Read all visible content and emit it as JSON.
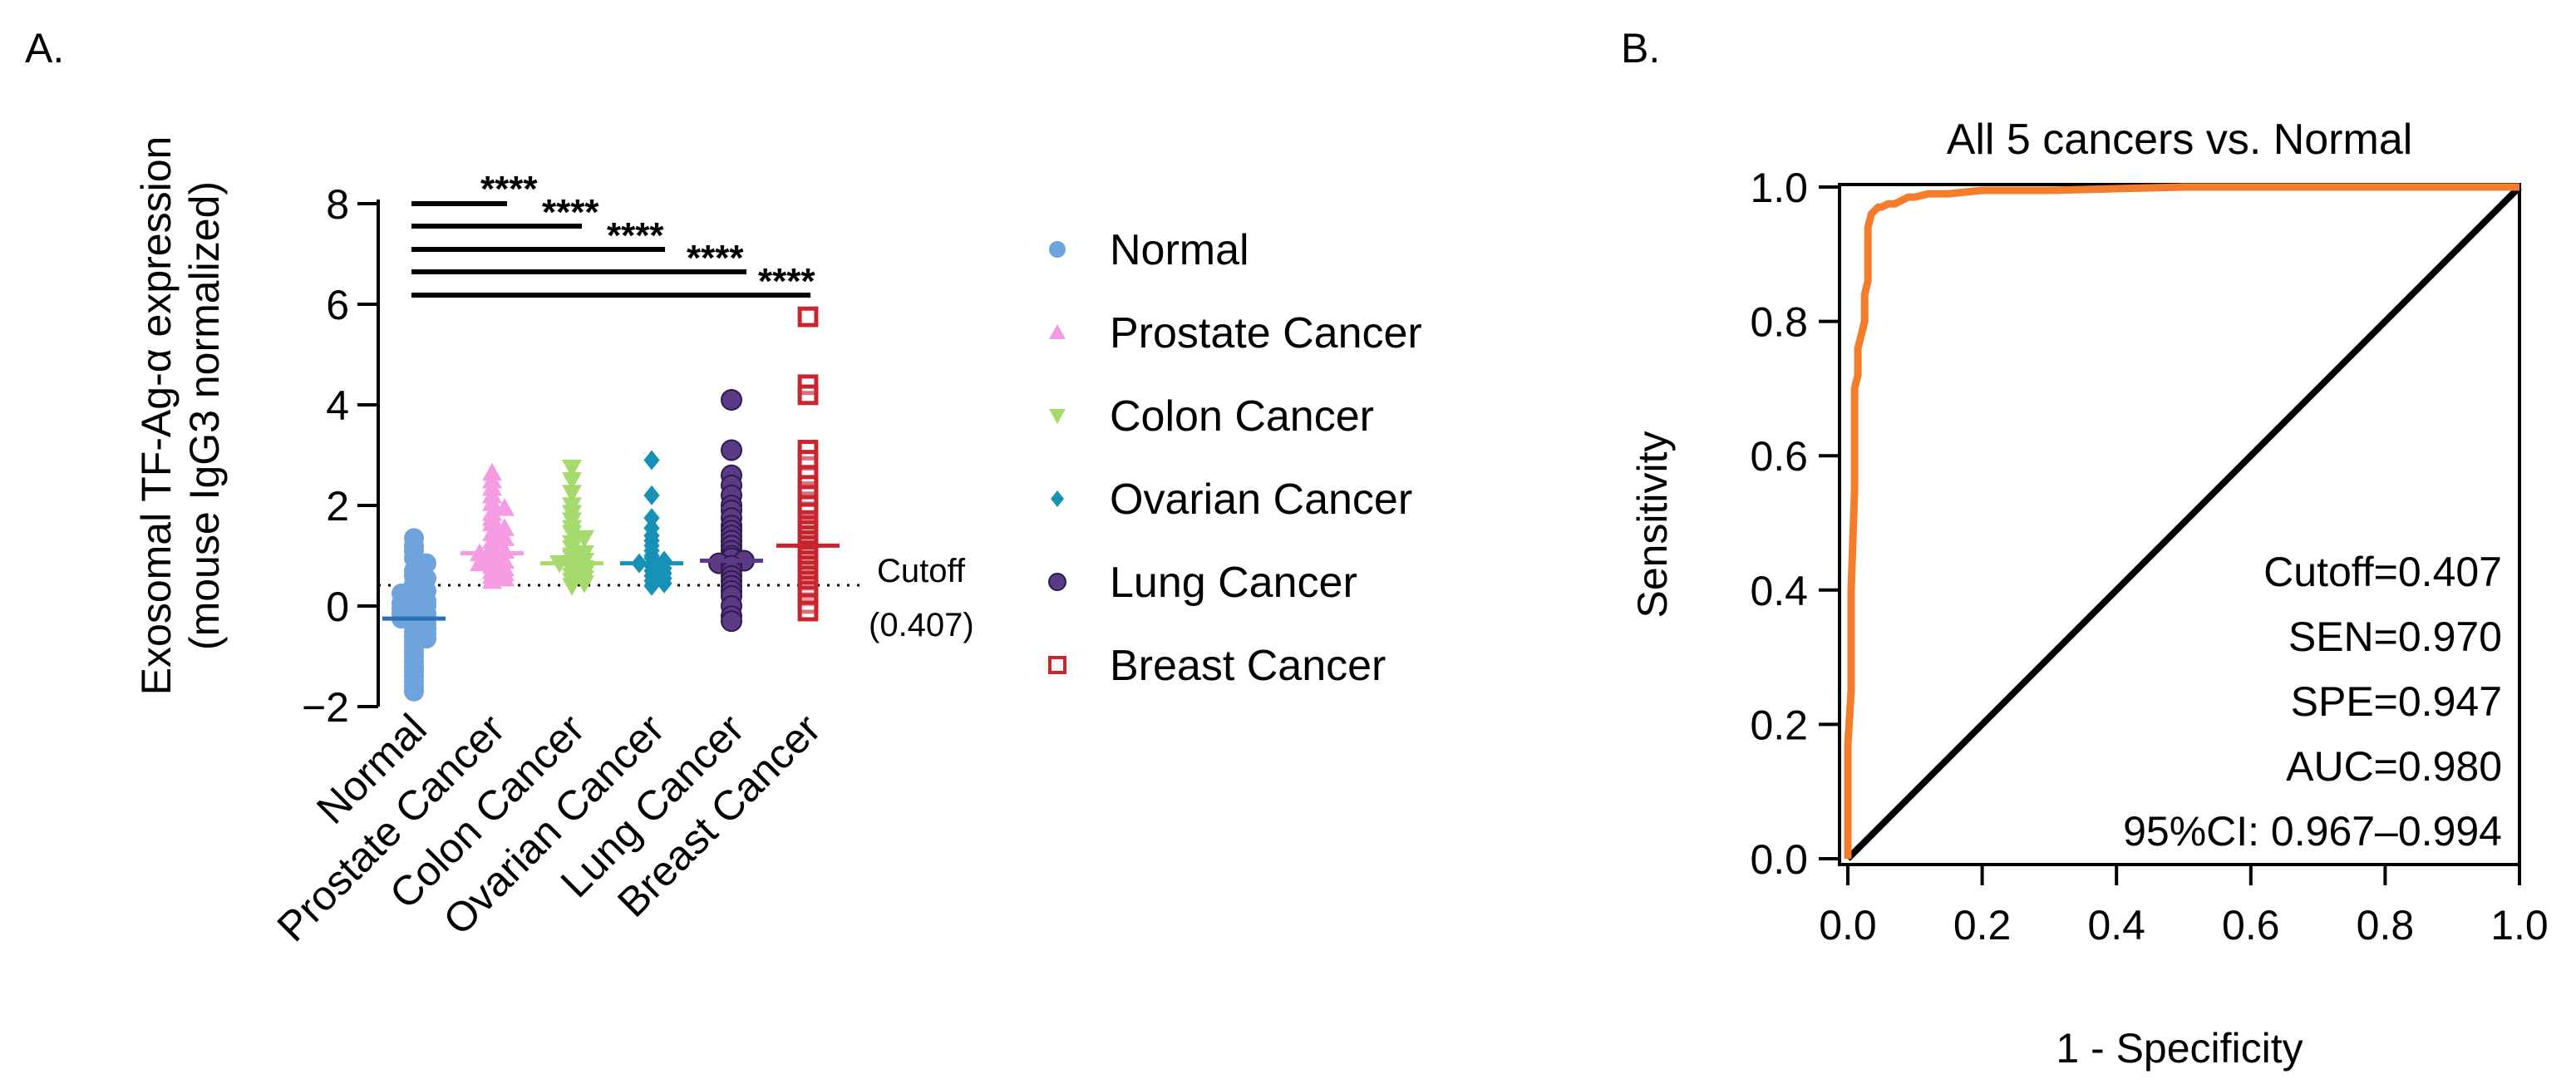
{
  "panel_a": {
    "letter": "A.",
    "ylabel_line1": "Exosomal TF-Ag-α expression",
    "ylabel_line2": "(mouse IgG3 normalized)",
    "yticks": [
      "8",
      "6",
      "4",
      "2",
      "0",
      "−2"
    ],
    "cutoff_label_line1": "Cutoff",
    "cutoff_label_line2": "(0.407)",
    "significance": [
      "****",
      "****",
      "****",
      "****",
      "****"
    ]
  },
  "panel_b": {
    "letter": "B.",
    "title": "All 5 cancers vs. Normal",
    "xlabel": "1 - Specificity",
    "ylabel": "Sensitivity",
    "xticks": [
      "0.0",
      "0.2",
      "0.4",
      "0.6",
      "0.8",
      "1.0"
    ],
    "yticks": [
      "1.0",
      "0.8",
      "0.6",
      "0.4",
      "0.2",
      "0.0"
    ],
    "stats": [
      "Cutoff=0.407",
      "SEN=0.970",
      "SPE=0.947",
      "AUC=0.980",
      "95%CI: 0.967–0.994"
    ]
  },
  "chart_data": [
    {
      "type": "scatter",
      "title": "",
      "ylabel": "Exosomal TF-Ag-α expression (mouse IgG3 normalized)",
      "ylim": [
        -2,
        8
      ],
      "yticks": [
        -2,
        0,
        2,
        4,
        6,
        8
      ],
      "cutoff": 0.407,
      "categories": [
        "Normal",
        "Prostate Cancer",
        "Colon Cancer",
        "Ovarian Cancer",
        "Lung Cancer",
        "Breast Cancer"
      ],
      "series": [
        {
          "name": "Normal",
          "color": "#6FA3DC",
          "marker": "circle",
          "median": -0.25,
          "values": [
            1.35,
            1.2,
            1.1,
            0.95,
            0.85,
            0.7,
            0.6,
            0.55,
            0.45,
            0.4,
            0.35,
            0.3,
            0.25,
            0.2,
            0.15,
            0.1,
            0.05,
            0.0,
            0.0,
            -0.05,
            -0.1,
            -0.15,
            -0.15,
            -0.2,
            -0.25,
            -0.25,
            -0.3,
            -0.35,
            -0.4,
            -0.45,
            -0.5,
            -0.55,
            -0.6,
            -0.65,
            -0.7,
            -0.8,
            -0.9,
            -1.0,
            -1.1,
            -1.2,
            -1.3,
            -1.4,
            -1.5,
            -1.6,
            -1.7
          ]
        },
        {
          "name": "Prostate Cancer",
          "color": "#F49BE4",
          "marker": "triangle-up",
          "median": 1.05,
          "values": [
            2.65,
            2.5,
            2.35,
            2.2,
            2.05,
            1.95,
            1.85,
            1.75,
            1.65,
            1.55,
            1.45,
            1.35,
            1.3,
            1.2,
            1.15,
            1.1,
            1.05,
            1.0,
            0.95,
            0.9,
            0.85,
            0.8,
            0.75,
            0.7,
            0.65,
            0.6,
            0.55,
            0.5
          ]
        },
        {
          "name": "Colon Cancer",
          "color": "#A6DA6C",
          "marker": "triangle-down",
          "median": 0.85,
          "values": [
            2.75,
            2.5,
            2.25,
            2.0,
            1.85,
            1.7,
            1.55,
            1.45,
            1.35,
            1.25,
            1.15,
            1.05,
            1.0,
            0.95,
            0.9,
            0.85,
            0.8,
            0.75,
            0.7,
            0.65,
            0.6,
            0.55,
            0.5,
            0.45,
            0.4
          ]
        },
        {
          "name": "Ovarian Cancer",
          "color": "#1791B5",
          "marker": "diamond",
          "median": 0.85,
          "values": [
            2.9,
            2.2,
            1.75,
            1.55,
            1.4,
            1.3,
            1.2,
            1.1,
            1.0,
            0.95,
            0.9,
            0.85,
            0.8,
            0.75,
            0.7,
            0.65,
            0.6,
            0.55,
            0.5,
            0.45,
            0.4
          ]
        },
        {
          "name": "Lung Cancer",
          "color": "#5B3A86",
          "marker": "circle",
          "median": 0.9,
          "values": [
            4.1,
            3.1,
            2.6,
            2.4,
            2.2,
            2.0,
            1.9,
            1.75,
            1.6,
            1.5,
            1.4,
            1.3,
            1.2,
            1.1,
            1.0,
            0.95,
            0.9,
            0.85,
            0.8,
            0.7,
            0.6,
            0.5,
            0.4,
            0.3,
            0.2,
            0.0,
            -0.2,
            -0.3
          ]
        },
        {
          "name": "Breast Cancer",
          "color": "#C8252F",
          "marker": "square",
          "median": 1.2,
          "values": [
            5.75,
            4.4,
            4.2,
            3.1,
            2.9,
            2.6,
            2.4,
            2.2,
            2.0,
            1.85,
            1.7,
            1.6,
            1.5,
            1.4,
            1.3,
            1.2,
            1.1,
            1.0,
            0.9,
            0.8,
            0.7,
            0.6,
            0.5,
            0.4,
            0.3,
            0.2,
            0.05,
            -0.1
          ]
        }
      ],
      "comparisons": [
        {
          "from": "Normal",
          "to": "Prostate Cancer",
          "y": 8.0,
          "label": "****"
        },
        {
          "from": "Normal",
          "to": "Colon Cancer",
          "y": 7.55,
          "label": "****"
        },
        {
          "from": "Normal",
          "to": "Ovarian Cancer",
          "y": 7.1,
          "label": "****"
        },
        {
          "from": "Normal",
          "to": "Lung Cancer",
          "y": 6.65,
          "label": "****"
        },
        {
          "from": "Normal",
          "to": "Breast Cancer",
          "y": 6.2,
          "label": "****"
        }
      ]
    },
    {
      "type": "line",
      "title": "All 5 cancers vs. Normal",
      "xlabel": "1 - Specificity",
      "ylabel": "Sensitivity",
      "xlim": [
        0,
        1
      ],
      "ylim": [
        0,
        1
      ],
      "series": [
        {
          "name": "ROC",
          "color": "#F47C2B",
          "x": [
            0.0,
            0.0,
            0.005,
            0.005,
            0.01,
            0.01,
            0.015,
            0.015,
            0.02,
            0.025,
            0.025,
            0.03,
            0.03,
            0.035,
            0.04,
            0.045,
            0.05,
            0.06,
            0.07,
            0.08,
            0.09,
            0.1,
            0.12,
            0.15,
            0.2,
            0.25,
            0.3,
            0.5,
            1.0
          ],
          "y": [
            0.0,
            0.17,
            0.25,
            0.4,
            0.55,
            0.7,
            0.72,
            0.76,
            0.78,
            0.8,
            0.84,
            0.86,
            0.94,
            0.96,
            0.965,
            0.97,
            0.97,
            0.975,
            0.975,
            0.98,
            0.985,
            0.985,
            0.99,
            0.99,
            0.995,
            0.995,
            0.995,
            1.0,
            1.0
          ]
        },
        {
          "name": "Reference",
          "color": "#000000",
          "x": [
            0,
            1
          ],
          "y": [
            0,
            1
          ]
        }
      ]
    }
  ]
}
